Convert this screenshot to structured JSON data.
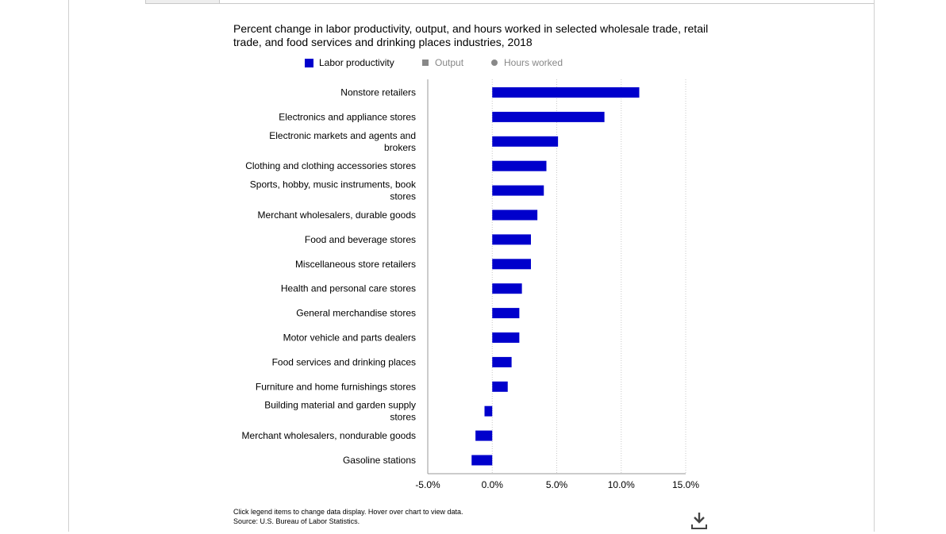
{
  "chart_data": {
    "type": "bar",
    "orientation": "horizontal",
    "title": "Percent change in labor productivity, output, and hours worked in selected wholesale trade, retail trade, and food services and drinking places industries, 2018",
    "legend": [
      {
        "label": "Labor productivity",
        "color": "#0000cc",
        "marker": "square",
        "active": true
      },
      {
        "label": "Output",
        "color": "#888888",
        "marker": "small-square",
        "active": false
      },
      {
        "label": "Hours worked",
        "color": "#888888",
        "marker": "circle",
        "active": false
      }
    ],
    "categories": [
      "Nonstore retailers",
      "Electronics and appliance stores",
      "Electronic markets and agents and brokers",
      "Clothing and clothing accessories stores",
      "Sports, hobby, music instruments, book stores",
      "Merchant wholesalers, durable goods",
      "Food and beverage stores",
      "Miscellaneous store retailers",
      "Health and personal care stores",
      "General merchandise stores",
      "Motor vehicle and parts dealers",
      "Food services and drinking places",
      "Furniture and home furnishings stores",
      "Building material and garden supply stores",
      "Merchant wholesalers, nondurable goods",
      "Gasoline stations"
    ],
    "series": [
      {
        "name": "Labor productivity",
        "color": "#0000cc",
        "values": [
          11.4,
          8.7,
          5.1,
          4.2,
          4.0,
          3.5,
          3.0,
          3.0,
          2.3,
          2.1,
          2.1,
          1.5,
          1.2,
          -0.6,
          -1.3,
          -1.6
        ]
      }
    ],
    "xlim": [
      -5,
      15
    ],
    "xticks": [
      "-5.0%",
      "0.0%",
      "5.0%",
      "10.0%",
      "15.0%"
    ],
    "xtick_values": [
      -5,
      0,
      5,
      10,
      15
    ],
    "grid": "vertical-dotted"
  },
  "footer": {
    "note": "Click legend items to change data display. Hover over chart to view data.",
    "source": "Source: U.S. Bureau of Labor Statistics."
  },
  "icons": {
    "download": "download-icon"
  }
}
